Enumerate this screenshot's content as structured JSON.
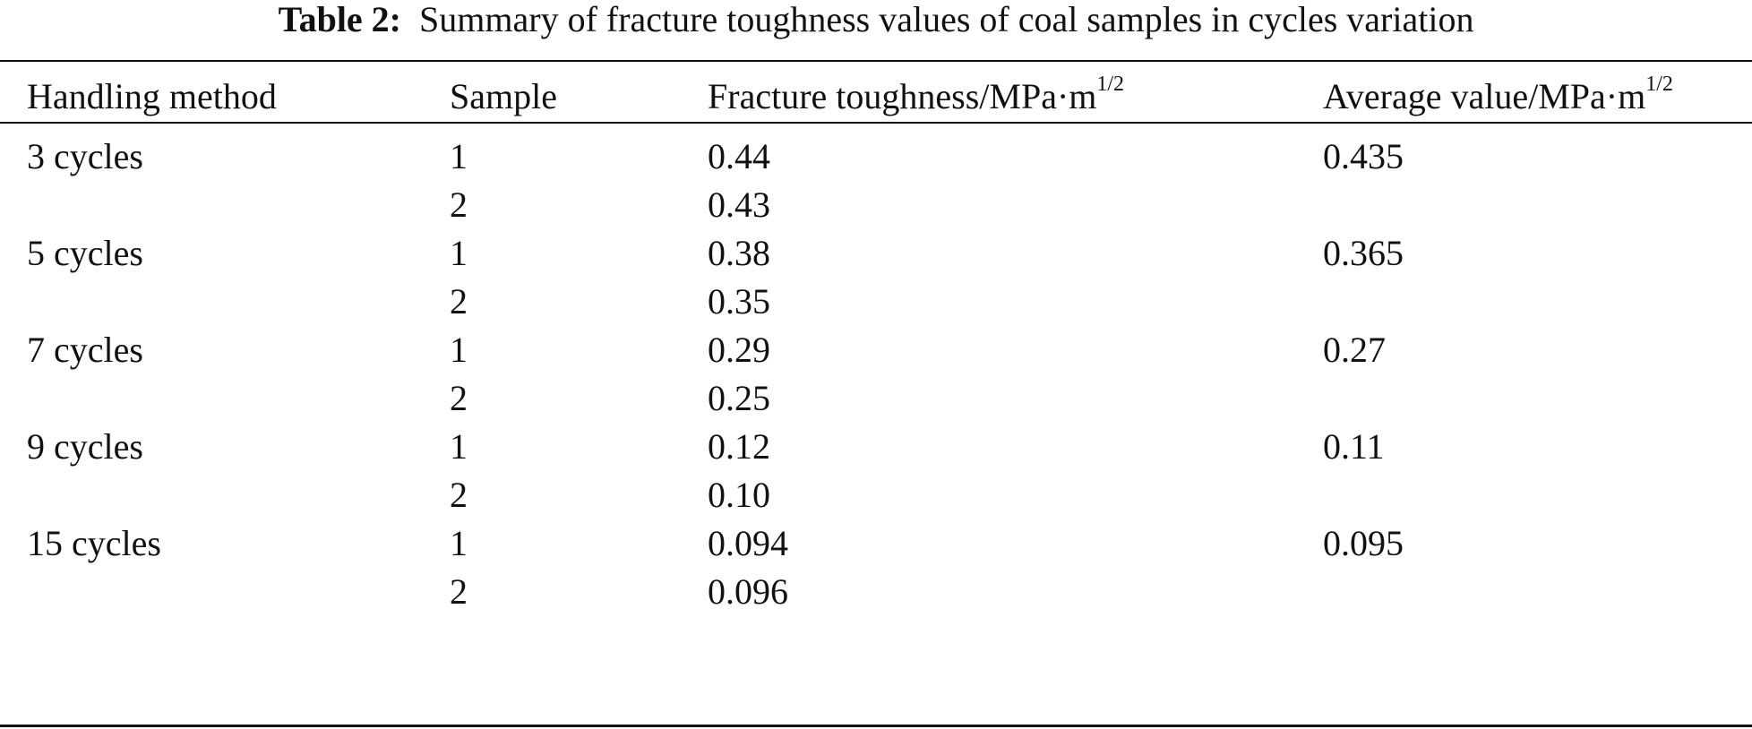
{
  "caption": {
    "label": "Table 2:",
    "text": "Summary of fracture toughness values of coal samples in cycles variation"
  },
  "table": {
    "headers": {
      "method": "Handling method",
      "sample": "Sample",
      "fracture_base": "Fracture toughness/MPa·m",
      "fracture_exp": "1/2",
      "average_base": "Average value/MPa·m",
      "average_exp": "1/2"
    },
    "rows": [
      {
        "method": "3 cycles",
        "sample": "1",
        "fracture": "0.44",
        "average": "0.435"
      },
      {
        "method": "",
        "sample": "2",
        "fracture": "0.43",
        "average": ""
      },
      {
        "method": "5 cycles",
        "sample": "1",
        "fracture": "0.38",
        "average": "0.365"
      },
      {
        "method": "",
        "sample": "2",
        "fracture": "0.35",
        "average": ""
      },
      {
        "method": "7 cycles",
        "sample": "1",
        "fracture": "0.29",
        "average": "0.27"
      },
      {
        "method": "",
        "sample": "2",
        "fracture": "0.25",
        "average": ""
      },
      {
        "method": "9 cycles",
        "sample": "1",
        "fracture": "0.12",
        "average": "0.11"
      },
      {
        "method": "",
        "sample": "2",
        "fracture": "0.10",
        "average": ""
      },
      {
        "method": "15 cycles",
        "sample": "1",
        "fracture": "0.094",
        "average": "0.095"
      },
      {
        "method": "",
        "sample": "2",
        "fracture": "0.096",
        "average": ""
      }
    ]
  }
}
